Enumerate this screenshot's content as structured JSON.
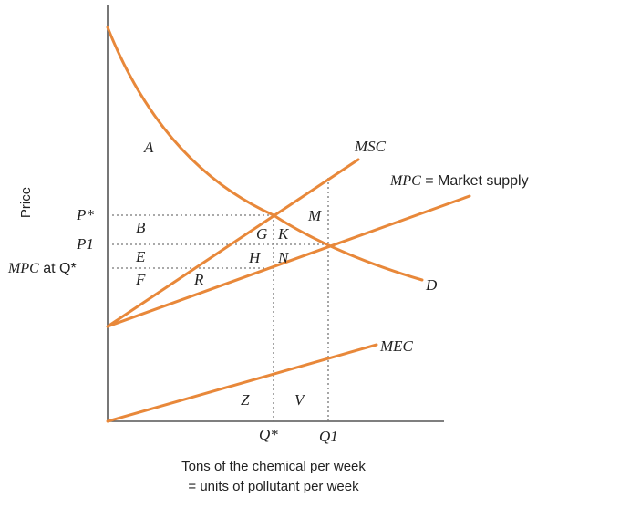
{
  "axes": {
    "ylabel": "Price",
    "xlabel_line1": "Tons of the chemical per week",
    "xlabel_line2": "= units of pollutant per week"
  },
  "curves": {
    "msc": "MSC",
    "mpc": "MPC",
    "mpc_suffix": " = Market supply",
    "demand": "D",
    "mec": "MEC"
  },
  "price_labels": {
    "p_star": "P*",
    "p1": "P1",
    "mpc_at_q": "MPC",
    "mpc_at_q_suffix": " at Q*"
  },
  "quantity_labels": {
    "q_star": "Q*",
    "q1": "Q1"
  },
  "area_labels": {
    "A": "A",
    "B": "B",
    "E": "E",
    "F": "F",
    "G": "G",
    "H": "H",
    "K": "K",
    "M": "M",
    "N": "N",
    "R": "R",
    "Z": "Z",
    "V": "V"
  },
  "colors": {
    "curve": "#E8883A",
    "axis": "#555555",
    "text": "#222222"
  }
}
